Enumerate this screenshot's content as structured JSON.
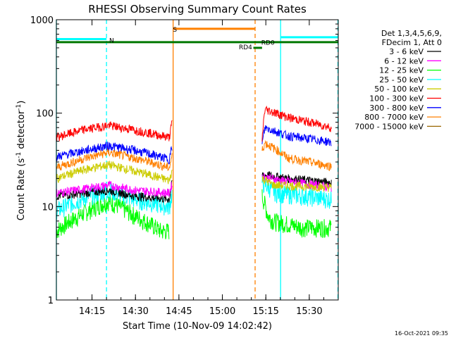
{
  "chart_data": {
    "type": "line",
    "title": "RHESSI Observing Summary Count Rates",
    "xlabel": "Start Time (10-Nov-09 14:02:42)",
    "ylabel_base": "Count Rate (s",
    "ylabel_sup1": "-1",
    "ylabel_mid": " detector",
    "ylabel_sup2": "-1",
    "ylabel_end": ")",
    "y_scale": "log",
    "ylim": [
      1,
      1000
    ],
    "x_range_minutes": [
      "14:02:42",
      "15:40:00"
    ],
    "xticks": [
      "14:15",
      "14:30",
      "14:45",
      "15:00",
      "15:15",
      "15:30"
    ],
    "yticks": [
      "1",
      "10",
      "100",
      "1000"
    ],
    "legend": {
      "header": [
        "Det 1,3,4,5,6,9,",
        "FDecim 1, Att 0"
      ],
      "placement": "right"
    },
    "series": [
      {
        "name": "3 - 6 keV",
        "color": "#000000",
        "a": [
          [
            0,
            13
          ],
          [
            10,
            14
          ],
          [
            18,
            15
          ],
          [
            27,
            13
          ],
          [
            39,
            12
          ],
          [
            40,
            18
          ]
        ],
        "b": [
          [
            71,
            22
          ],
          [
            80,
            20
          ],
          [
            95,
            18
          ]
        ]
      },
      {
        "name": "6 - 12 keV",
        "color": "#ff00ff",
        "a": [
          [
            0,
            14
          ],
          [
            10,
            15.5
          ],
          [
            18,
            17
          ],
          [
            27,
            15
          ],
          [
            39,
            14
          ],
          [
            40,
            18
          ]
        ],
        "b": [
          [
            71,
            21
          ],
          [
            78,
            19
          ],
          [
            95,
            16
          ]
        ]
      },
      {
        "name": "12 - 25 keV",
        "color": "#00ff00",
        "a": [
          [
            0,
            5.5
          ],
          [
            8,
            8
          ],
          [
            18,
            11.5
          ],
          [
            27,
            8
          ],
          [
            36,
            5.5
          ],
          [
            39,
            5.5
          ]
        ],
        "b": [
          [
            71,
            13
          ],
          [
            73,
            8
          ],
          [
            75,
            7
          ],
          [
            85,
            6
          ],
          [
            95,
            6
          ]
        ]
      },
      {
        "name": "25 - 50 keV",
        "color": "#00ffff",
        "a": [
          [
            0,
            9
          ],
          [
            10,
            12.5
          ],
          [
            18,
            15
          ],
          [
            27,
            12
          ],
          [
            39,
            10
          ],
          [
            40,
            14
          ]
        ],
        "b": [
          [
            71,
            18
          ],
          [
            76,
            14
          ],
          [
            95,
            12
          ]
        ]
      },
      {
        "name": "50 - 100 keV",
        "color": "#cccc00",
        "a": [
          [
            0,
            20
          ],
          [
            10,
            25
          ],
          [
            18,
            28
          ],
          [
            27,
            24
          ],
          [
            39,
            19
          ],
          [
            40,
            25
          ]
        ],
        "b": [
          [
            71,
            20
          ],
          [
            75,
            17
          ],
          [
            95,
            16
          ]
        ]
      },
      {
        "name": "100 - 300 keV",
        "color": "#ff0000",
        "a": [
          [
            0,
            55
          ],
          [
            10,
            67
          ],
          [
            18,
            74
          ],
          [
            27,
            66
          ],
          [
            39,
            55
          ],
          [
            40,
            80
          ]
        ],
        "b": [
          [
            71,
            50
          ],
          [
            72,
            110
          ],
          [
            80,
            90
          ],
          [
            95,
            70
          ]
        ]
      },
      {
        "name": "300 - 800 keV",
        "color": "#0000ff",
        "a": [
          [
            0,
            34
          ],
          [
            10,
            40
          ],
          [
            18,
            45
          ],
          [
            27,
            40
          ],
          [
            39,
            32
          ],
          [
            40,
            45
          ]
        ],
        "b": [
          [
            71,
            45
          ],
          [
            72,
            70
          ],
          [
            80,
            57
          ],
          [
            95,
            49
          ]
        ]
      },
      {
        "name": "800 - 7000 keV",
        "color": "#ff8000",
        "a": [
          [
            0,
            26
          ],
          [
            10,
            33
          ],
          [
            18,
            38
          ],
          [
            27,
            33
          ],
          [
            39,
            26
          ],
          [
            40,
            35
          ]
        ],
        "b": [
          [
            71,
            40
          ],
          [
            72,
            48
          ],
          [
            80,
            33
          ],
          [
            95,
            27
          ]
        ]
      },
      {
        "name": "7000 - 15000 keV",
        "color": "#996600",
        "a": [],
        "b": []
      }
    ],
    "annotations": [
      {
        "label": "N",
        "color": "#00ffff",
        "x": 17.5,
        "y": 620,
        "x0": 0,
        "x1": 17.3
      },
      {
        "label": "S",
        "color": "#ff8000",
        "x": 39.5,
        "y": 800,
        "x0": 40.5,
        "x1": 68.5
      },
      {
        "label": "RD4",
        "color": "#007700",
        "x": 63,
        "y": 500,
        "x0": 68,
        "x1": 71
      },
      {
        "label": "RD0",
        "color": "#007700",
        "x": 70,
        "y": 560
      }
    ],
    "green_line_y": 575,
    "cyan_bar_right": {
      "x0": 77.5,
      "x1": 97.2,
      "y": 650
    },
    "vlines": [
      {
        "x": 0,
        "color": "#00ffff",
        "style": "solid"
      },
      {
        "x": 17.3,
        "color": "#00ffff",
        "style": "dashed"
      },
      {
        "x": 40.3,
        "color": "#ff8000",
        "style": "solid"
      },
      {
        "x": 68.6,
        "color": "#ff8000",
        "style": "dashed"
      },
      {
        "x": 77.4,
        "color": "#00ffff",
        "style": "solid"
      },
      {
        "x": 97.2,
        "color": "#00ffff",
        "style": "dashed"
      }
    ]
  },
  "footer_timestamp": "16-Oct-2021 09:35"
}
